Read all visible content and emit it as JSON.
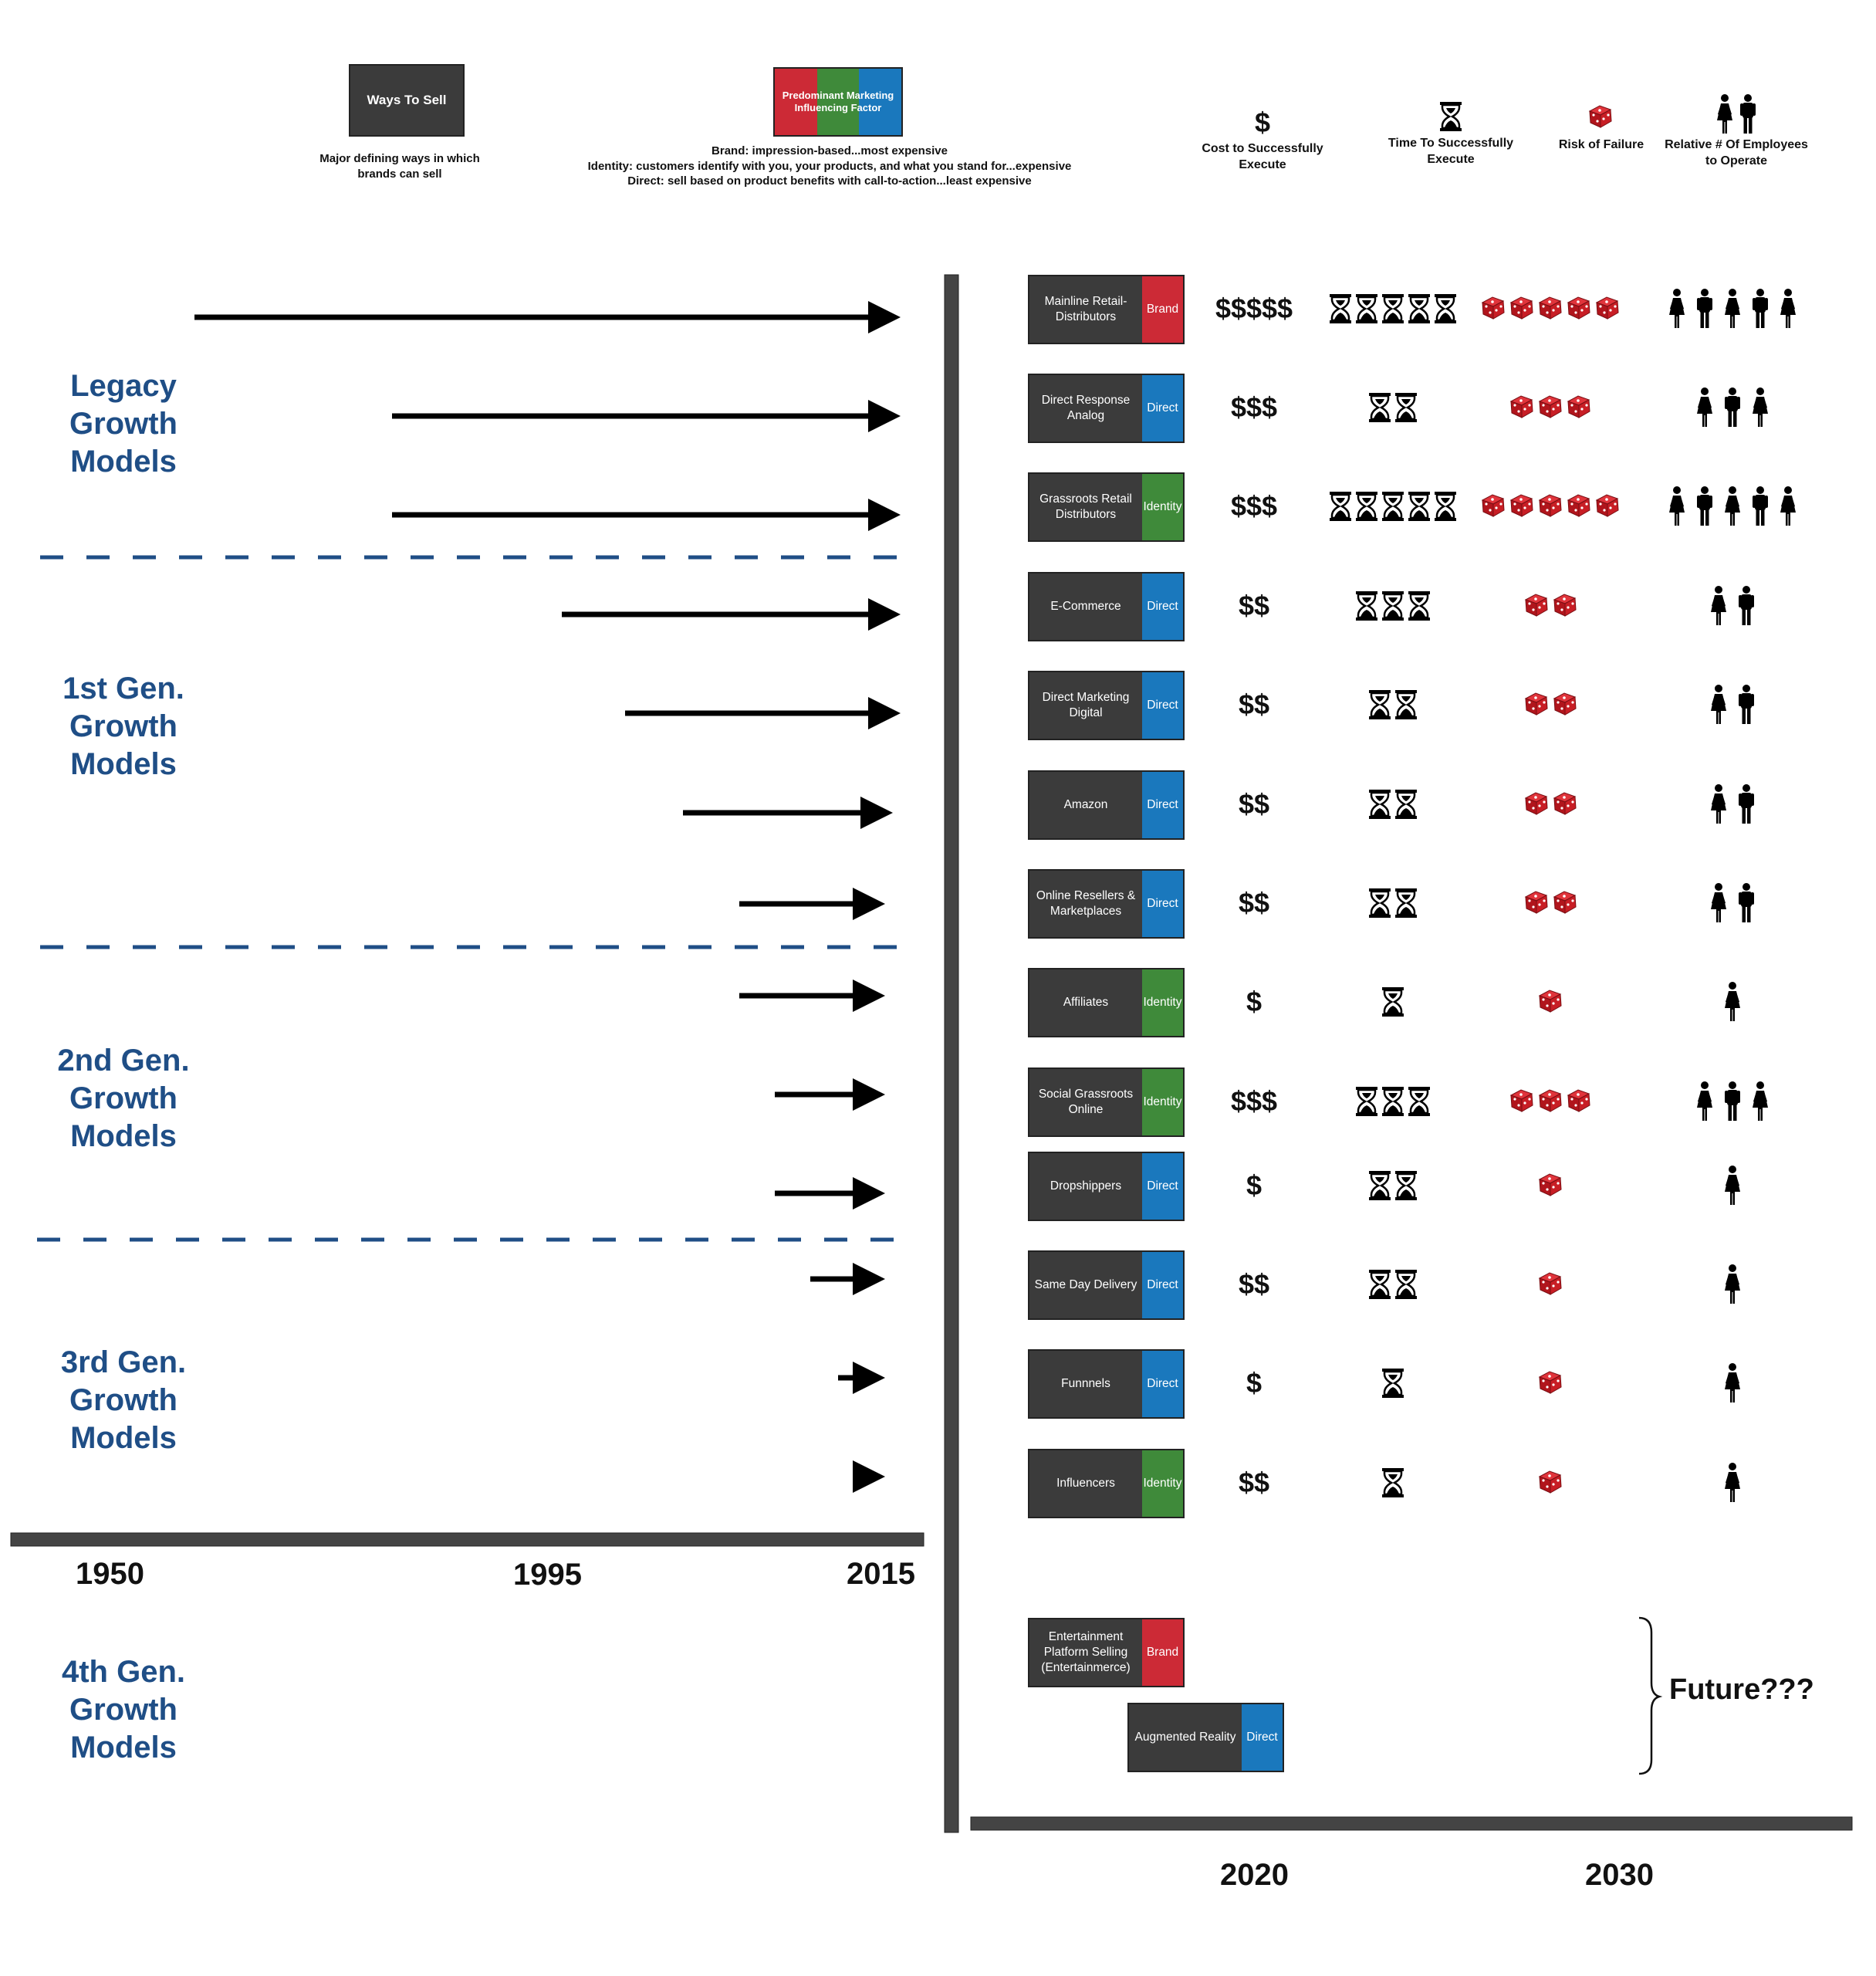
{
  "colors": {
    "brand": "#cc2a36",
    "identity": "#3f8a3a",
    "direct": "#1a78bd",
    "box": "#3b3b3b",
    "gen": "#1f4e86"
  },
  "legend": {
    "ways_title": "Ways To Sell",
    "ways_desc": "Major defining ways in which brands can sell",
    "factor_title": "Predominant Marketing Influencing Factor",
    "factor_desc_1": "Brand:  impression-based...most expensive",
    "factor_desc_2": "Identity:  customers identify with you, your products, and what you stand for...expensive",
    "factor_desc_3": "Direct:  sell based on product benefits with call-to-action...least expensive"
  },
  "columns": {
    "cost_symbol": "$",
    "cost": "Cost to Successfully Execute",
    "time": "Time To Successfully Execute",
    "risk": "Risk of Failure",
    "employees": "Relative # Of Employees to Operate"
  },
  "generations": {
    "legacy": "Legacy Growth Models",
    "gen1": "1st Gen. Growth Models",
    "gen2": "2nd Gen. Growth Models",
    "gen3": "3rd Gen. Growth Models",
    "gen4": "4th Gen. Growth Models"
  },
  "timeline_years": [
    "1950",
    "1995",
    "2015"
  ],
  "future_years": [
    "2020",
    "2030"
  ],
  "models": [
    {
      "name": "Mainline Retail-Distributors",
      "factor": "Brand",
      "cost": "$$$$$",
      "time": 5,
      "risk": 5,
      "employees": 5
    },
    {
      "name": "Direct Response Analog",
      "factor": "Direct",
      "cost": "$$$",
      "time": 2,
      "risk": 3,
      "employees": 3
    },
    {
      "name": "Grassroots Retail Distributors",
      "factor": "Identity",
      "cost": "$$$",
      "time": 5,
      "risk": 5,
      "employees": 5
    },
    {
      "name": "E-Commerce",
      "factor": "Direct",
      "cost": "$$",
      "time": 3,
      "risk": 2,
      "employees": 2
    },
    {
      "name": "Direct Marketing Digital",
      "factor": "Direct",
      "cost": "$$",
      "time": 2,
      "risk": 2,
      "employees": 2
    },
    {
      "name": "Amazon",
      "factor": "Direct",
      "cost": "$$",
      "time": 2,
      "risk": 2,
      "employees": 2
    },
    {
      "name": "Online Resellers & Marketplaces",
      "factor": "Direct",
      "cost": "$$",
      "time": 2,
      "risk": 2,
      "employees": 2
    },
    {
      "name": "Affiliates",
      "factor": "Identity",
      "cost": "$",
      "time": 1,
      "risk": 1,
      "employees": 1
    },
    {
      "name": "Social Grassroots Online",
      "factor": "Identity",
      "cost": "$$$",
      "time": 3,
      "risk": 3,
      "employees": 3
    },
    {
      "name": "Dropshippers",
      "factor": "Direct",
      "cost": "$",
      "time": 2,
      "risk": 1,
      "employees": 1
    },
    {
      "name": "Same Day Delivery",
      "factor": "Direct",
      "cost": "$$",
      "time": 2,
      "risk": 1,
      "employees": 1
    },
    {
      "name": "Funnnels",
      "factor": "Direct",
      "cost": "$",
      "time": 1,
      "risk": 1,
      "employees": 1
    },
    {
      "name": "Influencers",
      "factor": "Identity",
      "cost": "$$",
      "time": 1,
      "risk": 1,
      "employees": 1
    }
  ],
  "future_models": [
    {
      "name": "Entertainment Platform Selling (Entertainmerce)",
      "factor": "Brand"
    },
    {
      "name": "Augmented Reality",
      "factor": "Direct"
    }
  ],
  "future_label": "Future???"
}
